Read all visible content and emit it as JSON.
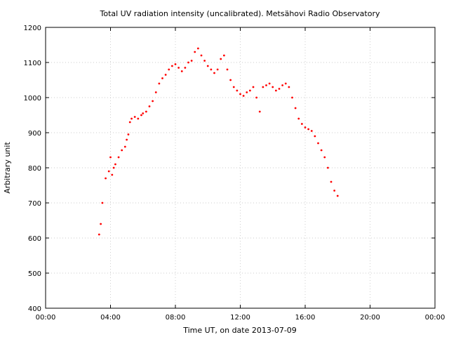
{
  "chart_data": {
    "type": "scatter",
    "title": "Total UV radiation intensity (uncalibrated). Metsähovi Radio Observatory",
    "xlabel": "Time UT, on date 2013-07-09",
    "ylabel": "Arbitrary unit",
    "xlim": [
      0,
      24
    ],
    "ylim": [
      400,
      1200
    ],
    "x_ticks": [
      "00:00",
      "04:00",
      "08:00",
      "12:00",
      "16:00",
      "20:00",
      "00:00"
    ],
    "y_ticks": [
      "400",
      "500",
      "600",
      "700",
      "800",
      "900",
      "1000",
      "1100",
      "1200"
    ],
    "grid": true,
    "legend": "none",
    "marker_color": "#ff0000",
    "series": [
      {
        "values_x_hours": [
          3.3,
          3.4,
          3.5,
          3.7,
          3.9,
          4.0,
          4.1,
          4.2,
          4.3,
          4.5,
          4.7,
          4.9,
          5.0,
          5.1,
          5.2,
          5.3,
          5.5,
          5.7,
          5.9,
          6.0,
          6.2,
          6.4,
          6.6,
          6.8,
          7.0,
          7.2,
          7.4,
          7.6,
          7.8,
          8.0,
          8.2,
          8.4,
          8.6,
          8.8,
          9.0,
          9.2,
          9.4,
          9.6,
          9.8,
          10.0,
          10.2,
          10.4,
          10.6,
          10.8,
          11.0,
          11.2,
          11.4,
          11.6,
          11.8,
          12.0,
          12.2,
          12.4,
          12.6,
          12.8,
          13.0,
          13.2,
          13.4,
          13.6,
          13.8,
          14.0,
          14.2,
          14.4,
          14.6,
          14.8,
          15.0,
          15.2,
          15.4,
          15.6,
          15.8,
          16.0,
          16.2,
          16.4,
          16.6,
          16.8,
          17.0,
          17.2,
          17.4,
          17.6,
          17.8,
          18.0
        ],
        "values_y": [
          610,
          640,
          700,
          770,
          790,
          830,
          780,
          800,
          810,
          830,
          850,
          860,
          880,
          895,
          930,
          940,
          945,
          940,
          950,
          955,
          960,
          975,
          990,
          1015,
          1040,
          1055,
          1065,
          1080,
          1090,
          1095,
          1085,
          1075,
          1085,
          1100,
          1105,
          1130,
          1140,
          1120,
          1105,
          1090,
          1080,
          1070,
          1080,
          1110,
          1120,
          1080,
          1050,
          1030,
          1020,
          1010,
          1005,
          1015,
          1020,
          1030,
          1000,
          960,
          1030,
          1035,
          1040,
          1030,
          1020,
          1025,
          1035,
          1040,
          1030,
          1000,
          970,
          940,
          925,
          915,
          910,
          905,
          890,
          870,
          850,
          830,
          800,
          760,
          735,
          720
        ]
      }
    ]
  }
}
